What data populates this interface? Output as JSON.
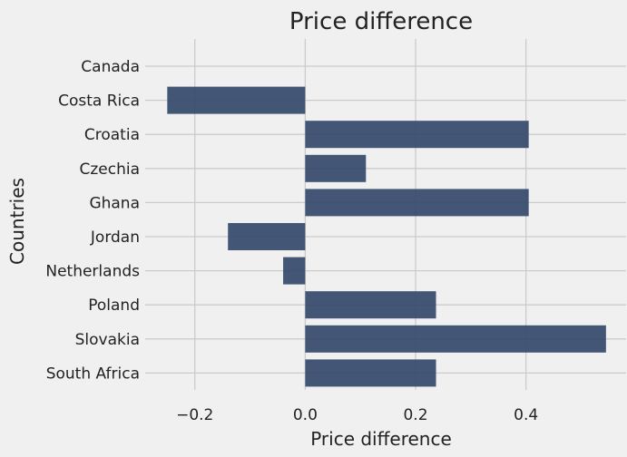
{
  "chart_data": {
    "type": "bar",
    "orientation": "horizontal",
    "title": "Price difference",
    "xlabel": "Price difference",
    "ylabel": "Countries",
    "categories": [
      "Canada",
      "Costa Rica",
      "Croatia",
      "Czechia",
      "Ghana",
      "Jordan",
      "Netherlands",
      "Poland",
      "Slovakia",
      "South Africa"
    ],
    "values": [
      0.0,
      -0.25,
      0.405,
      0.11,
      0.405,
      -0.14,
      -0.04,
      0.237,
      0.545,
      0.237
    ],
    "xlim": [
      -0.29,
      0.565
    ],
    "xticks": [
      -0.2,
      0.0,
      0.2,
      0.4
    ],
    "xtick_labels": [
      "−0.2",
      "0.0",
      "0.2",
      "0.4"
    ],
    "grid": true,
    "bar_color": "#34496a",
    "background_color": "#f0f0f0",
    "grid_color": "#cbcbcb"
  }
}
